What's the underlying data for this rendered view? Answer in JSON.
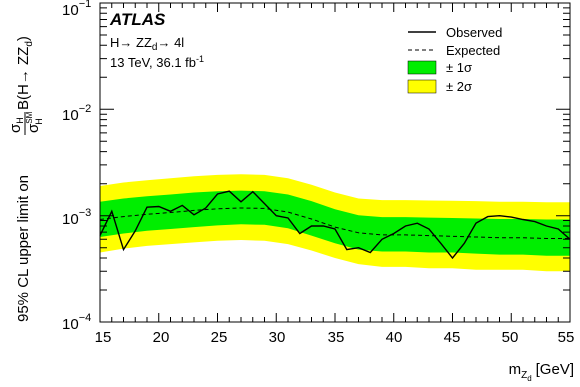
{
  "chart_data": {
    "type": "line",
    "experiment": "ATLAS",
    "process_label": "H→ ZZ",
    "process_subscript": "d",
    "process_suffix": "→ 4l",
    "energy_lumi": "13 TeV, 36.1 fb",
    "energy_lumi_exp": "-1",
    "xlabel": "m",
    "xlabel_subscript": "Z",
    "xlabel_subsubscript": "d",
    "xlabel_units": "[GeV]",
    "ylabel_main": "95% CL upper limit on",
    "ylabel_frac_num": "σ",
    "ylabel_frac_num_sub": "H",
    "ylabel_frac_den": "σ",
    "ylabel_frac_den_sup": "SM",
    "ylabel_frac_den_sub": "H",
    "ylabel_tail": "B(H→ ZZ",
    "ylabel_tail_sub": "d",
    "ylabel_tail_close": ")",
    "xlim": [
      15,
      55
    ],
    "ylim": [
      0.0001,
      0.1
    ],
    "yscale": "log",
    "x_ticks": [
      15,
      20,
      25,
      30,
      35,
      40,
      45,
      50,
      55
    ],
    "y_ticks": [
      {
        "value": 0.0001,
        "base": "10",
        "exp": "−4"
      },
      {
        "value": 0.001,
        "base": "10",
        "exp": "−3"
      },
      {
        "value": 0.01,
        "base": "10",
        "exp": "−2"
      },
      {
        "value": 0.1,
        "base": "10",
        "exp": "−1"
      }
    ],
    "legend": {
      "placement": "top-right",
      "observed": "Observed",
      "expected": "Expected",
      "band1": "± 1σ",
      "band2": "± 2σ"
    },
    "colors": {
      "band1": "#00ee00",
      "band2": "#ffff00",
      "observed": "#000000",
      "expected": "#000000"
    },
    "expected": {
      "x": [
        15,
        17,
        19,
        21,
        23,
        25,
        27,
        29,
        31,
        33,
        35,
        37,
        39,
        41,
        43,
        45,
        47,
        49,
        51,
        53,
        55
      ],
      "y": [
        0.00092,
        0.00098,
        0.00103,
        0.00107,
        0.00112,
        0.00116,
        0.00118,
        0.00117,
        0.00108,
        0.00093,
        0.00078,
        0.00069,
        0.00066,
        0.00066,
        0.00065,
        0.00064,
        0.00063,
        0.00062,
        0.00062,
        0.00061,
        0.00061
      ]
    },
    "band_1sigma": {
      "lo": [
        0.00063,
        0.00068,
        0.00072,
        0.00075,
        0.00078,
        0.00081,
        0.00083,
        0.00082,
        0.00076,
        0.00065,
        0.00055,
        0.00048,
        0.00046,
        0.00046,
        0.00045,
        0.00045,
        0.00044,
        0.00043,
        0.00043,
        0.00042,
        0.00042
      ],
      "hi": [
        0.00135,
        0.00145,
        0.00152,
        0.00158,
        0.00165,
        0.0017,
        0.00172,
        0.0017,
        0.00158,
        0.00137,
        0.00115,
        0.00101,
        0.00097,
        0.00097,
        0.00096,
        0.00095,
        0.00094,
        0.00093,
        0.00093,
        0.00092,
        0.00092
      ]
    },
    "band_2sigma": {
      "lo": [
        0.00045,
        0.00049,
        0.00052,
        0.00054,
        0.00056,
        0.00058,
        0.00059,
        0.00058,
        0.00054,
        0.00047,
        0.0004,
        0.00035,
        0.00033,
        0.00033,
        0.00032,
        0.00032,
        0.00031,
        0.00031,
        0.00031,
        0.0003,
        0.0003
      ],
      "hi": [
        0.0019,
        0.00205,
        0.00215,
        0.00225,
        0.00235,
        0.00242,
        0.00245,
        0.00242,
        0.00225,
        0.00195,
        0.00165,
        0.00145,
        0.0014,
        0.0014,
        0.00139,
        0.00138,
        0.00137,
        0.00135,
        0.00135,
        0.00134,
        0.00134
      ]
    },
    "observed": {
      "x": [
        15,
        16,
        17,
        18,
        19,
        20,
        21,
        22,
        23,
        24,
        25,
        26,
        27,
        28,
        29,
        30,
        31,
        32,
        33,
        34,
        35,
        36,
        37,
        38,
        39,
        40,
        41,
        42,
        43,
        44,
        45,
        46,
        47,
        48,
        49,
        50,
        51,
        52,
        53,
        54,
        55
      ],
      "y": [
        0.00065,
        0.0011,
        0.00048,
        0.00072,
        0.0012,
        0.00122,
        0.0011,
        0.00125,
        0.00102,
        0.00118,
        0.0016,
        0.0017,
        0.00135,
        0.00168,
        0.0013,
        0.001,
        0.00095,
        0.00068,
        0.0008,
        0.0008,
        0.00075,
        0.00048,
        0.0005,
        0.00045,
        0.0006,
        0.00068,
        0.0008,
        0.00085,
        0.00075,
        0.00055,
        0.0004,
        0.00055,
        0.00085,
        0.00098,
        0.001,
        0.00097,
        0.00092,
        0.00088,
        0.0008,
        0.00075,
        0.0006
      ]
    }
  }
}
